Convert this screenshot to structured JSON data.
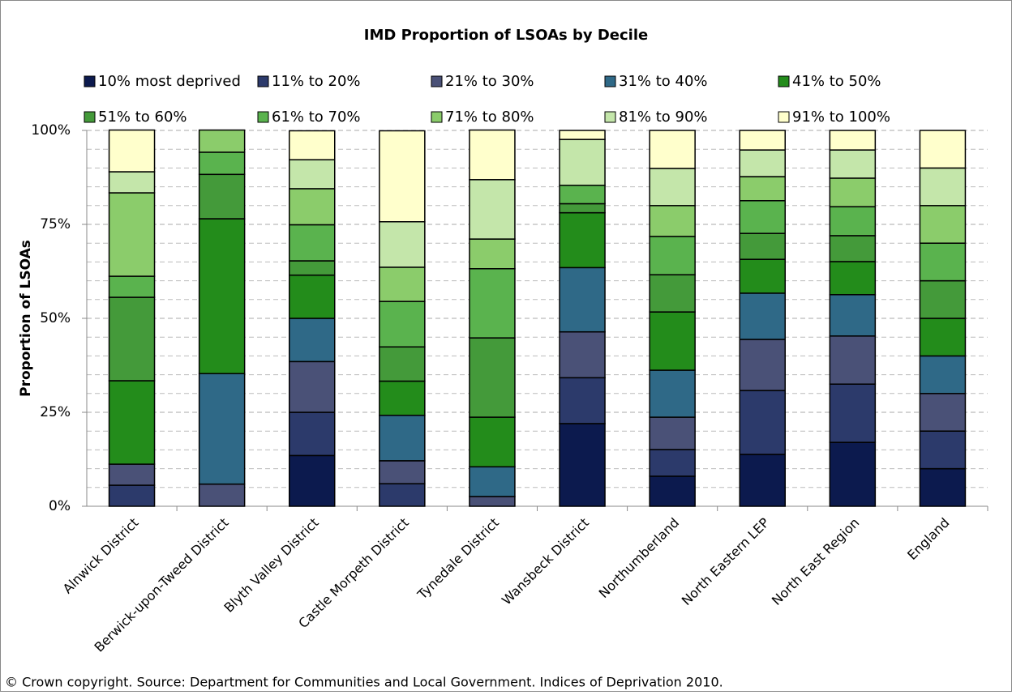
{
  "chart_data": {
    "type": "stacked_bar",
    "title": "IMD Proportion of LSOAs by Decile",
    "y_label": "Proportion of LSOAs",
    "source": "© Crown copyright. Source: Department for Communities and Local Government. Indices of Deprivation 2010.",
    "categories": [
      "Alnwick District",
      "Berwick-upon-Tweed District",
      "Blyth Valley District",
      "Castle Morpeth District",
      "Tynedale District",
      "Wansbeck District",
      "Northumberland",
      "North Eastern LEP",
      "North East Region",
      "England"
    ],
    "series": [
      {
        "name": "10% most deprived",
        "color": "#0c1a4e",
        "values": [
          0,
          0,
          13.5,
          0,
          0,
          22.0,
          8.0,
          13.8,
          17.0,
          10
        ]
      },
      {
        "name": "11% to 20%",
        "color": "#2c3a6b",
        "values": [
          5.6,
          0,
          11.5,
          6.0,
          0,
          12.2,
          7.1,
          17.0,
          15.5,
          10
        ]
      },
      {
        "name": "21% to 30%",
        "color": "#4a5177",
        "values": [
          5.6,
          5.9,
          13.5,
          6.1,
          2.6,
          12.2,
          8.6,
          13.6,
          12.8,
          10
        ]
      },
      {
        "name": "31% to 40%",
        "color": "#2f6987",
        "values": [
          0,
          29.4,
          11.5,
          12.1,
          7.9,
          17.1,
          12.5,
          12.3,
          11.0,
          10
        ]
      },
      {
        "name": "41% to 50%",
        "color": "#238c1b",
        "values": [
          22.2,
          41.2,
          11.5,
          9.1,
          13.2,
          14.6,
          15.5,
          9.0,
          8.8,
          10
        ]
      },
      {
        "name": "51% to 60%",
        "color": "#449a3a",
        "values": [
          22.2,
          11.8,
          3.8,
          9.1,
          21.1,
          2.4,
          9.9,
          6.9,
          6.9,
          10
        ]
      },
      {
        "name": "61% to 70%",
        "color": "#5ab34e",
        "values": [
          5.6,
          5.9,
          9.6,
          12.1,
          18.4,
          4.9,
          10.2,
          8.7,
          7.7,
          10
        ]
      },
      {
        "name": "71% to 80%",
        "color": "#8bcc6b",
        "values": [
          22.2,
          5.9,
          9.6,
          9.1,
          7.9,
          0,
          8.2,
          6.4,
          7.6,
          10
        ]
      },
      {
        "name": "81% to 90%",
        "color": "#c4e6aa",
        "values": [
          5.6,
          0,
          7.7,
          12.1,
          15.8,
          12.2,
          9.9,
          7.1,
          7.5,
          10
        ]
      },
      {
        "name": "91% to 100%",
        "color": "#ffffcc",
        "values": [
          11.1,
          0,
          7.7,
          24.2,
          13.2,
          2.4,
          10.1,
          5.2,
          5.2,
          10
        ]
      }
    ],
    "ylim": [
      0,
      100
    ],
    "yticks": [
      {
        "value": 0,
        "label": "0%"
      },
      {
        "value": 25,
        "label": "25%"
      },
      {
        "value": 50,
        "label": "50%"
      },
      {
        "value": 75,
        "label": "75%"
      },
      {
        "value": 100,
        "label": "100%"
      }
    ],
    "ygrid_minor": [
      5,
      10,
      15,
      20,
      30,
      35,
      40,
      45,
      55,
      60,
      65,
      70,
      80,
      85,
      90,
      95
    ],
    "grid": true
  }
}
